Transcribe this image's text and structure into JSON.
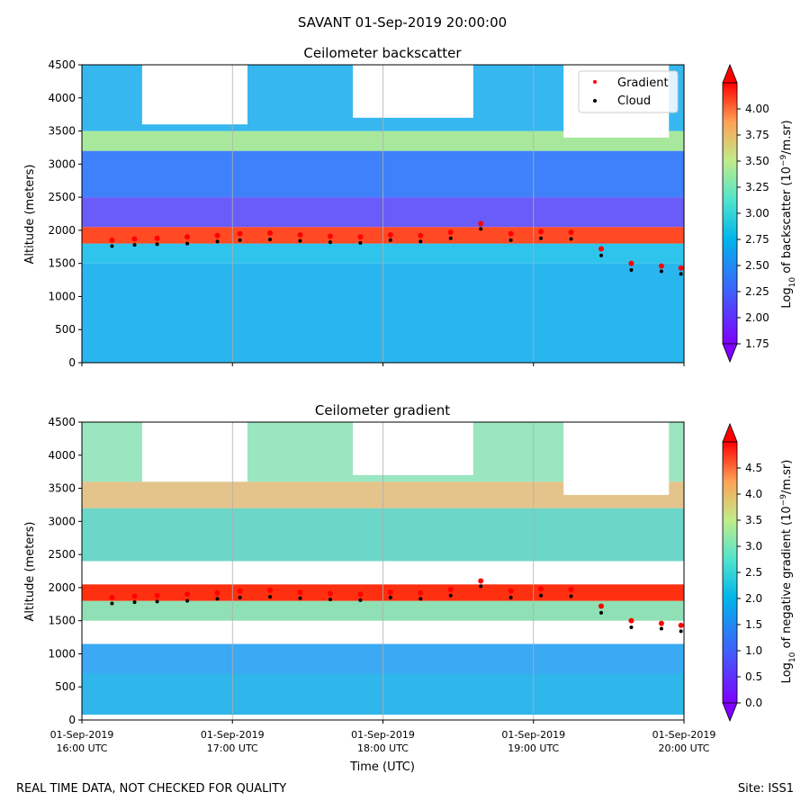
{
  "suptitle": "SAVANT 01-Sep-2019 20:00:00",
  "footer_left": "REAL TIME DATA, NOT CHECKED FOR QUALITY",
  "footer_right": "Site: ISS1",
  "colors": {
    "gradient_marker": "#ff0000",
    "cloud_marker": "#000000",
    "colormap": "rainbow"
  },
  "chart_data": [
    {
      "type": "heatmap",
      "title": "Ceilometer backscatter",
      "ylabel": "Altitude (meters)",
      "xlabel": "",
      "ylim": [
        0,
        4500
      ],
      "yticks": [
        "0",
        "500",
        "1000",
        "1500",
        "2000",
        "2500",
        "3000",
        "3500",
        "4000",
        "4500"
      ],
      "xlim": [
        "01-Sep-2019 16:00 UTC",
        "01-Sep-2019 20:00 UTC"
      ],
      "grid": "vertical",
      "legend_position": "top-right",
      "legend": [
        {
          "label": "Gradient",
          "color": "#ff0000"
        },
        {
          "label": "Cloud",
          "color": "#000000"
        }
      ],
      "colorbar": {
        "label_parts": [
          "Log",
          "10",
          " of backscatter (10",
          "−9",
          "/m.sr)"
        ],
        "range": [
          1.75,
          4.25
        ],
        "ticks": [
          "1.75",
          "2.00",
          "2.25",
          "2.50",
          "2.75",
          "3.00",
          "3.25",
          "3.50",
          "3.75",
          "4.00"
        ]
      },
      "series": [
        {
          "name": "Gradient",
          "x_hours": [
            0.2,
            0.35,
            0.5,
            0.7,
            0.9,
            1.05,
            1.25,
            1.45,
            1.65,
            1.85,
            2.05,
            2.25,
            2.45,
            2.65,
            2.85,
            3.05,
            3.25,
            3.45,
            3.65,
            3.85,
            3.98
          ],
          "y": [
            1850,
            1870,
            1880,
            1900,
            1920,
            1950,
            1960,
            1930,
            1910,
            1900,
            1930,
            1920,
            1970,
            2100,
            1950,
            1980,
            1970,
            1720,
            1500,
            1460,
            1430
          ]
        },
        {
          "name": "Cloud",
          "x_hours": [
            0.2,
            0.35,
            0.5,
            0.7,
            0.9,
            1.05,
            1.25,
            1.45,
            1.65,
            1.85,
            2.05,
            2.25,
            2.45,
            2.65,
            2.85,
            3.05,
            3.25,
            3.45,
            3.65,
            3.85,
            3.98
          ],
          "y": [
            1760,
            1780,
            1790,
            1800,
            1830,
            1850,
            1860,
            1840,
            1820,
            1810,
            1850,
            1830,
            1880,
            2020,
            1850,
            1880,
            1870,
            1620,
            1400,
            1380,
            1340
          ]
        }
      ]
    },
    {
      "type": "heatmap",
      "title": "Ceilometer gradient",
      "ylabel": "Altitude (meters)",
      "xlabel": "Time (UTC)",
      "ylim": [
        0,
        4500
      ],
      "yticks": [
        "0",
        "500",
        "1000",
        "1500",
        "2000",
        "2500",
        "3000",
        "3500",
        "4000",
        "4500"
      ],
      "xticks": [
        {
          "date": "01-Sep-2019",
          "time": "16:00 UTC"
        },
        {
          "date": "01-Sep-2019",
          "time": "17:00 UTC"
        },
        {
          "date": "01-Sep-2019",
          "time": "18:00 UTC"
        },
        {
          "date": "01-Sep-2019",
          "time": "19:00 UTC"
        },
        {
          "date": "01-Sep-2019",
          "time": "20:00 UTC"
        }
      ],
      "grid": "vertical",
      "colorbar": {
        "label_parts": [
          "Log",
          "10",
          " of negative gradient (10",
          "−9",
          "/m.sr)"
        ],
        "range": [
          0.0,
          5.0
        ],
        "ticks": [
          "0.0",
          "0.5",
          "1.0",
          "1.5",
          "2.0",
          "2.5",
          "3.0",
          "3.5",
          "4.0",
          "4.5"
        ]
      }
    }
  ]
}
